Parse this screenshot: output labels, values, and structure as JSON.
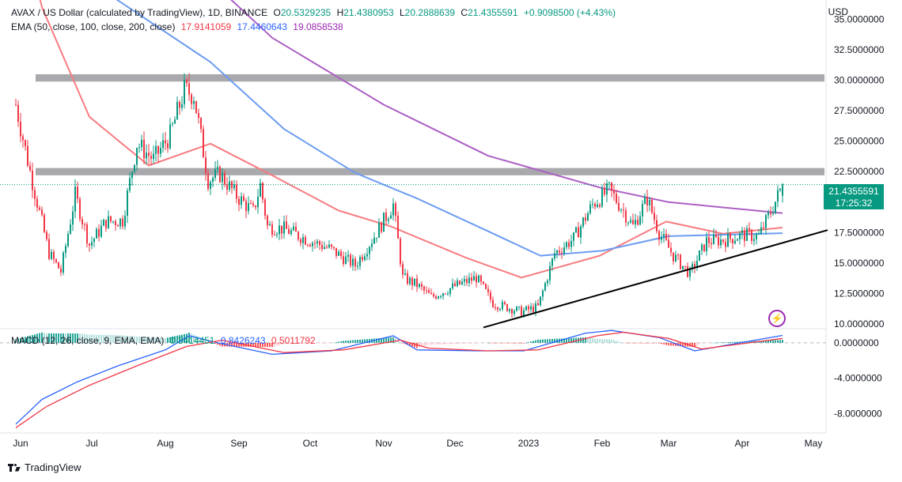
{
  "header": {
    "symbol": "AVAX / US Dollar (calculated by TradingView), 1D, BINANCE",
    "o_label": "O",
    "o_value": "20.5329235",
    "h_label": "H",
    "h_value": "21.4380953",
    "l_label": "L",
    "l_value": "20.2888639",
    "c_label": "C",
    "c_value": "21.4355591",
    "change": "+0.9098500 (+4.43%)"
  },
  "ema_legend": {
    "label": "EMA (50, close, 100, close, 200, close)",
    "ema50": "17.9141059",
    "ema100": "17.4460643",
    "ema200": "19.0858538"
  },
  "macd_legend": {
    "label": "MACD (12, 26, close, 9, EMA, EMA)",
    "hist": "0.3414451",
    "macd": "0.8426243",
    "signal": "0.5011792"
  },
  "currency": "USD",
  "last_price": {
    "value": "21.4355591",
    "countdown": "17:25:32"
  },
  "branding": "TradingView",
  "colors": {
    "up": "#089981",
    "down": "#f23645",
    "ema50": "#f77c80",
    "ema100": "#6b9cf2",
    "ema200": "#ab5fc4",
    "macd": "#2962ff",
    "signal": "#f23645",
    "zone": "#a9a9ad",
    "trendline": "#000000"
  },
  "icons": {
    "flash": "lightning-icon",
    "logo": "tradingview-logo-icon"
  },
  "chart_data": [
    {
      "type": "candlestick",
      "title": "AVAX / US Dollar (calculated by TradingView), 1D, BINANCE",
      "y_ticks": [
        "35.0000000",
        "32.5000000",
        "30.0000000",
        "27.5000000",
        "25.0000000",
        "22.5000000",
        "20.0000000",
        "17.5000000",
        "15.0000000",
        "12.5000000",
        "10.0000000"
      ],
      "x_ticks": [
        "Jun",
        "Jul",
        "Aug",
        "Sep",
        "Oct",
        "Nov",
        "Dec",
        "2023",
        "Feb",
        "Mar",
        "Apr",
        "May"
      ],
      "ylim": [
        9.6,
        36.6
      ],
      "close_keypoints": [
        {
          "date": "2022-05-30",
          "value": 28.0
        },
        {
          "date": "2022-06-05",
          "value": 22.5
        },
        {
          "date": "2022-06-13",
          "value": 15.8
        },
        {
          "date": "2022-06-18",
          "value": 14.3
        },
        {
          "date": "2022-06-24",
          "value": 20.6
        },
        {
          "date": "2022-06-30",
          "value": 16.5
        },
        {
          "date": "2022-07-07",
          "value": 18.4
        },
        {
          "date": "2022-07-14",
          "value": 18.5
        },
        {
          "date": "2022-07-20",
          "value": 24.8
        },
        {
          "date": "2022-07-27",
          "value": 23.5
        },
        {
          "date": "2022-08-03",
          "value": 25.5
        },
        {
          "date": "2022-08-09",
          "value": 29.2
        },
        {
          "date": "2022-08-13",
          "value": 28.8
        },
        {
          "date": "2022-08-19",
          "value": 21.8
        },
        {
          "date": "2022-08-24",
          "value": 22.3
        },
        {
          "date": "2022-08-31",
          "value": 20.5
        },
        {
          "date": "2022-09-07",
          "value": 19.2
        },
        {
          "date": "2022-09-10",
          "value": 21.4
        },
        {
          "date": "2022-09-13",
          "value": 18.0
        },
        {
          "date": "2022-09-20",
          "value": 17.8
        },
        {
          "date": "2022-09-30",
          "value": 16.9
        },
        {
          "date": "2022-10-09",
          "value": 16.2
        },
        {
          "date": "2022-10-20",
          "value": 14.8
        },
        {
          "date": "2022-10-28",
          "value": 17.2
        },
        {
          "date": "2022-11-05",
          "value": 19.8
        },
        {
          "date": "2022-11-09",
          "value": 13.8
        },
        {
          "date": "2022-11-15",
          "value": 13.2
        },
        {
          "date": "2022-11-21",
          "value": 12.2
        },
        {
          "date": "2022-12-01",
          "value": 13.1
        },
        {
          "date": "2022-12-10",
          "value": 13.8
        },
        {
          "date": "2022-12-17",
          "value": 11.7
        },
        {
          "date": "2022-12-29",
          "value": 11.0
        },
        {
          "date": "2023-01-05",
          "value": 11.4
        },
        {
          "date": "2023-01-12",
          "value": 15.8
        },
        {
          "date": "2023-01-20",
          "value": 17.0
        },
        {
          "date": "2023-01-28",
          "value": 19.8
        },
        {
          "date": "2023-02-04",
          "value": 21.0
        },
        {
          "date": "2023-02-10",
          "value": 19.3
        },
        {
          "date": "2023-02-14",
          "value": 18.0
        },
        {
          "date": "2023-02-20",
          "value": 20.3
        },
        {
          "date": "2023-02-25",
          "value": 17.5
        },
        {
          "date": "2023-03-03",
          "value": 15.6
        },
        {
          "date": "2023-03-10",
          "value": 14.1
        },
        {
          "date": "2023-03-17",
          "value": 16.8
        },
        {
          "date": "2023-03-25",
          "value": 16.9
        },
        {
          "date": "2023-04-01",
          "value": 17.3
        },
        {
          "date": "2023-04-08",
          "value": 17.2
        },
        {
          "date": "2023-04-14",
          "value": 19.6
        },
        {
          "date": "2023-04-18",
          "value": 21.44
        }
      ],
      "ema_keypoints": {
        "EMA 50": [
          {
            "date": "2022-05-30",
            "value": 45
          },
          {
            "date": "2022-06-10",
            "value": 36
          },
          {
            "date": "2022-06-30",
            "value": 27
          },
          {
            "date": "2022-07-25",
            "value": 23.0
          },
          {
            "date": "2022-08-20",
            "value": 24.8
          },
          {
            "date": "2022-09-14",
            "value": 22.3
          },
          {
            "date": "2022-10-13",
            "value": 19.3
          },
          {
            "date": "2022-11-04",
            "value": 18.0
          },
          {
            "date": "2022-12-06",
            "value": 15.4
          },
          {
            "date": "2022-12-29",
            "value": 13.8
          },
          {
            "date": "2023-01-31",
            "value": 15.6
          },
          {
            "date": "2023-02-28",
            "value": 18.4
          },
          {
            "date": "2023-03-24",
            "value": 17.4
          },
          {
            "date": "2023-04-18",
            "value": 17.91
          }
        ],
        "EMA 100": [
          {
            "date": "2022-07-01",
            "value": 38
          },
          {
            "date": "2022-08-20",
            "value": 31.5
          },
          {
            "date": "2022-09-20",
            "value": 26.0
          },
          {
            "date": "2022-10-20",
            "value": 22.4
          },
          {
            "date": "2022-11-15",
            "value": 20.3
          },
          {
            "date": "2022-12-15",
            "value": 17.6
          },
          {
            "date": "2023-01-06",
            "value": 15.6
          },
          {
            "date": "2023-02-01",
            "value": 16.0
          },
          {
            "date": "2023-03-01",
            "value": 17.2
          },
          {
            "date": "2023-04-18",
            "value": 17.45
          }
        ],
        "EMA 200": [
          {
            "date": "2022-08-10",
            "value": 40
          },
          {
            "date": "2022-09-15",
            "value": 33.5
          },
          {
            "date": "2022-11-01",
            "value": 28.0
          },
          {
            "date": "2022-12-15",
            "value": 23.8
          },
          {
            "date": "2023-01-31",
            "value": 21.2
          },
          {
            "date": "2023-03-01",
            "value": 20.0
          },
          {
            "date": "2023-04-18",
            "value": 19.09
          }
        ]
      },
      "zones": [
        {
          "label": "resistance",
          "from": 29.9,
          "to": 30.5
        },
        {
          "label": "resistance",
          "from": 22.2,
          "to": 22.8
        }
      ],
      "trendline": {
        "from": {
          "date": "2022-12-13",
          "value": 9.7
        },
        "to": {
          "date": "2023-05-07",
          "value": 17.7
        }
      },
      "last_price": 21.4355591,
      "grid": false
    },
    {
      "type": "macd",
      "title": "MACD (12, 26, close, 9, EMA, EMA)",
      "y_ticks": [
        "0.0000000",
        "-4.0000000",
        "-8.0000000"
      ],
      "ylim": [
        -10.2,
        1.6
      ],
      "macd_keypoints": [
        {
          "date": "2022-05-30",
          "value": -9.2
        },
        {
          "date": "2022-06-10",
          "value": -6.4
        },
        {
          "date": "2022-06-25",
          "value": -4.4
        },
        {
          "date": "2022-07-12",
          "value": -2.6
        },
        {
          "date": "2022-08-01",
          "value": -0.8
        },
        {
          "date": "2022-08-11",
          "value": 0.8
        },
        {
          "date": "2022-08-23",
          "value": 0.0
        },
        {
          "date": "2022-09-15",
          "value": -1.3
        },
        {
          "date": "2022-10-10",
          "value": -0.9
        },
        {
          "date": "2022-11-05",
          "value": 0.8
        },
        {
          "date": "2022-11-15",
          "value": -0.8
        },
        {
          "date": "2022-12-10",
          "value": -0.9
        },
        {
          "date": "2022-12-30",
          "value": -0.9
        },
        {
          "date": "2023-01-25",
          "value": 1.1
        },
        {
          "date": "2023-02-05",
          "value": 1.4
        },
        {
          "date": "2023-02-25",
          "value": 0.6
        },
        {
          "date": "2023-03-12",
          "value": -0.9
        },
        {
          "date": "2023-03-31",
          "value": 0.0
        },
        {
          "date": "2023-04-18",
          "value": 0.84
        }
      ],
      "signal_keypoints": [
        {
          "date": "2022-05-30",
          "value": -9.6
        },
        {
          "date": "2022-06-12",
          "value": -7.2
        },
        {
          "date": "2022-06-30",
          "value": -4.8
        },
        {
          "date": "2022-07-20",
          "value": -2.6
        },
        {
          "date": "2022-08-10",
          "value": -0.4
        },
        {
          "date": "2022-08-25",
          "value": 0.3
        },
        {
          "date": "2022-09-20",
          "value": -1.1
        },
        {
          "date": "2022-10-15",
          "value": -0.8
        },
        {
          "date": "2022-11-08",
          "value": 0.3
        },
        {
          "date": "2022-11-20",
          "value": -0.6
        },
        {
          "date": "2022-12-15",
          "value": -0.9
        },
        {
          "date": "2023-01-05",
          "value": -0.8
        },
        {
          "date": "2023-01-30",
          "value": 0.8
        },
        {
          "date": "2023-02-10",
          "value": 1.2
        },
        {
          "date": "2023-03-01",
          "value": 0.5
        },
        {
          "date": "2023-03-15",
          "value": -0.7
        },
        {
          "date": "2023-04-01",
          "value": -0.1
        },
        {
          "date": "2023-04-18",
          "value": 0.5
        }
      ]
    }
  ]
}
